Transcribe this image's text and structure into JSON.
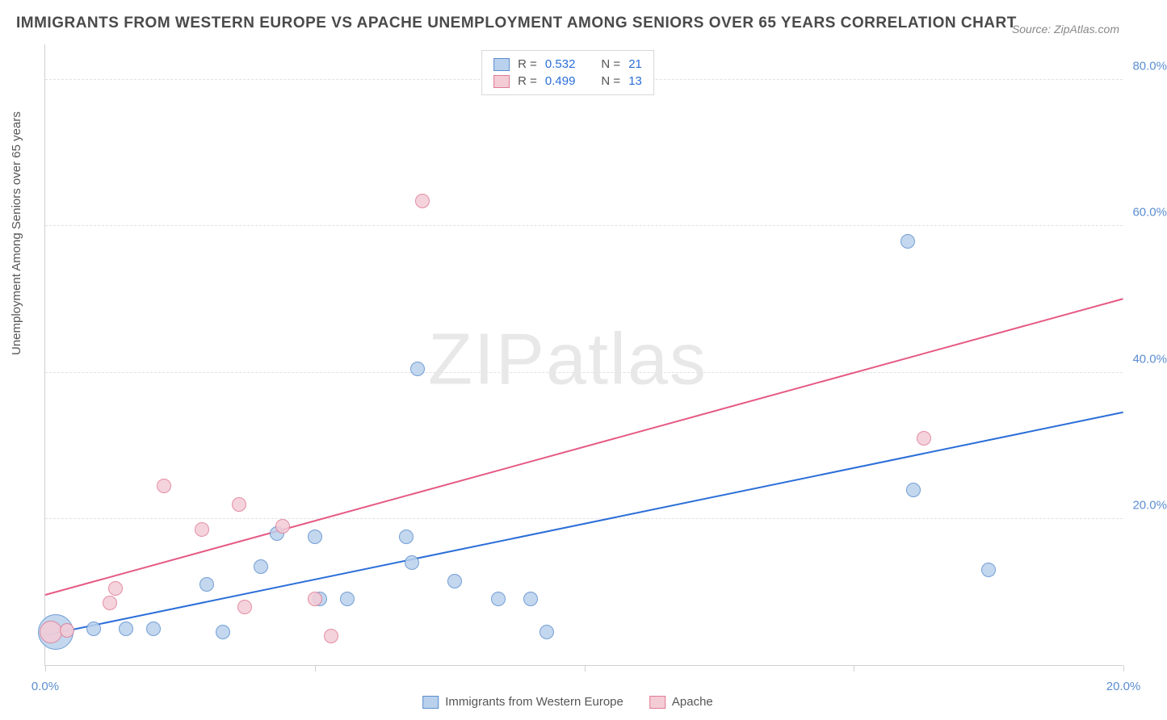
{
  "title": "IMMIGRANTS FROM WESTERN EUROPE VS APACHE UNEMPLOYMENT AMONG SENIORS OVER 65 YEARS CORRELATION CHART",
  "source": "Source: ZipAtlas.com",
  "y_axis_label": "Unemployment Among Seniors over 65 years",
  "watermark": "ZIPatlas",
  "chart": {
    "type": "scatter",
    "xlim": [
      0,
      20
    ],
    "ylim": [
      0,
      85
    ],
    "x_ticks": [
      0,
      5,
      10,
      15,
      20
    ],
    "x_tick_labels": [
      "0.0%",
      "",
      "",
      "",
      "20.0%"
    ],
    "y_ticks": [
      20,
      40,
      60,
      80
    ],
    "y_tick_labels": [
      "20.0%",
      "40.0%",
      "60.0%",
      "80.0%"
    ],
    "background_color": "#ffffff",
    "grid_color": "#e0e0e0",
    "axis_text_color": "#5b8ecf",
    "series": [
      {
        "name": "Immigrants from Western Europe",
        "fill": "#b9d1ec",
        "stroke": "#5b8ecf",
        "trend_color": "#2b6ed8",
        "r_value": "0.532",
        "n_value": "21",
        "trend": {
          "x1": 0,
          "y1": 4.0,
          "x2": 20,
          "y2": 34.5
        },
        "points": [
          {
            "x": 0.2,
            "y": 4.5,
            "r": 22
          },
          {
            "x": 0.9,
            "y": 5.0,
            "r": 9
          },
          {
            "x": 1.5,
            "y": 5.0,
            "r": 9
          },
          {
            "x": 2.0,
            "y": 5.0,
            "r": 9
          },
          {
            "x": 3.0,
            "y": 11.0,
            "r": 9
          },
          {
            "x": 3.3,
            "y": 4.5,
            "r": 9
          },
          {
            "x": 4.0,
            "y": 13.5,
            "r": 9
          },
          {
            "x": 4.3,
            "y": 18.0,
            "r": 9
          },
          {
            "x": 5.0,
            "y": 17.5,
            "r": 9
          },
          {
            "x": 5.1,
            "y": 9.0,
            "r": 9
          },
          {
            "x": 5.6,
            "y": 9.0,
            "r": 9
          },
          {
            "x": 6.7,
            "y": 17.5,
            "r": 9
          },
          {
            "x": 6.8,
            "y": 14.0,
            "r": 9
          },
          {
            "x": 6.9,
            "y": 40.5,
            "r": 9
          },
          {
            "x": 7.6,
            "y": 11.5,
            "r": 9
          },
          {
            "x": 8.4,
            "y": 9.0,
            "r": 9
          },
          {
            "x": 9.0,
            "y": 9.0,
            "r": 9
          },
          {
            "x": 9.3,
            "y": 4.5,
            "r": 9
          },
          {
            "x": 16.0,
            "y": 58.0,
            "r": 9
          },
          {
            "x": 16.1,
            "y": 24.0,
            "r": 9
          },
          {
            "x": 17.5,
            "y": 13.0,
            "r": 9
          }
        ]
      },
      {
        "name": "Apache",
        "fill": "#f4ccd6",
        "stroke": "#e07a94",
        "trend_color": "#e55a84",
        "r_value": "0.499",
        "n_value": "13",
        "trend": {
          "x1": 0,
          "y1": 9.5,
          "x2": 20,
          "y2": 50.0
        },
        "points": [
          {
            "x": 0.1,
            "y": 4.5,
            "r": 14
          },
          {
            "x": 0.4,
            "y": 4.8,
            "r": 9
          },
          {
            "x": 1.2,
            "y": 8.5,
            "r": 9
          },
          {
            "x": 1.3,
            "y": 10.5,
            "r": 9
          },
          {
            "x": 2.2,
            "y": 24.5,
            "r": 9
          },
          {
            "x": 2.9,
            "y": 18.5,
            "r": 9
          },
          {
            "x": 3.6,
            "y": 22.0,
            "r": 9
          },
          {
            "x": 3.7,
            "y": 8.0,
            "r": 9
          },
          {
            "x": 4.4,
            "y": 19.0,
            "r": 9
          },
          {
            "x": 5.0,
            "y": 9.0,
            "r": 9
          },
          {
            "x": 5.3,
            "y": 4.0,
            "r": 9
          },
          {
            "x": 7.0,
            "y": 63.5,
            "r": 9
          },
          {
            "x": 16.3,
            "y": 31.0,
            "r": 9
          }
        ]
      }
    ]
  },
  "legend_top": {
    "r_label": "R =",
    "n_label": "N ="
  },
  "legend_bottom": {
    "items": [
      "Immigrants from Western Europe",
      "Apache"
    ]
  }
}
